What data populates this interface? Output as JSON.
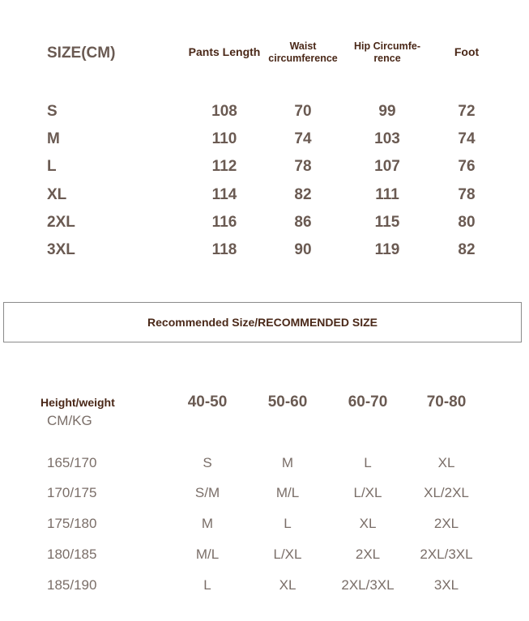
{
  "size_table": {
    "title": "SIZE(CM)",
    "headers": [
      "Pants Length",
      "Waist circumference",
      "Hip Circumfe-rence",
      "Foot"
    ],
    "header_lines": [
      [
        "Pants Length"
      ],
      [
        "Waist",
        "circumference"
      ],
      [
        "Hip Circumfe-",
        "rence"
      ],
      [
        "Foot"
      ]
    ],
    "rows": [
      {
        "size": "S",
        "values": [
          "108",
          "70",
          "99",
          "72"
        ]
      },
      {
        "size": "M",
        "values": [
          "110",
          "74",
          "103",
          "74"
        ]
      },
      {
        "size": "L",
        "values": [
          "112",
          "78",
          "107",
          "76"
        ]
      },
      {
        "size": "XL",
        "values": [
          "114",
          "82",
          "111",
          "78"
        ]
      },
      {
        "size": "2XL",
        "values": [
          "116",
          "86",
          "115",
          "80"
        ]
      },
      {
        "size": "3XL",
        "values": [
          "118",
          "90",
          "119",
          "82"
        ]
      }
    ]
  },
  "recommended_banner": "Recommended Size/RECOMMENDED SIZE",
  "recommend_table": {
    "title": "Height/weight",
    "unit": "CM/KG",
    "columns": [
      "40-50",
      "50-60",
      "60-70",
      "70-80"
    ],
    "rows": [
      {
        "height": "165/170",
        "values": [
          "S",
          "M",
          "L",
          "XL"
        ]
      },
      {
        "height": "170/175",
        "values": [
          "S/M",
          "M/L",
          "L/XL",
          "XL/2XL"
        ]
      },
      {
        "height": "175/180",
        "values": [
          "M",
          "L",
          "XL",
          "2XL"
        ]
      },
      {
        "height": "180/185",
        "values": [
          "M/L",
          "L/XL",
          "2XL",
          "2XL/3XL"
        ]
      },
      {
        "height": "185/190",
        "values": [
          "L",
          "XL",
          "2XL/3XL",
          "3XL"
        ]
      }
    ]
  },
  "colors": {
    "header": "#4a2818",
    "value": "#6a5a52",
    "light_value": "#7a6e68",
    "border": "#8a8a8a"
  }
}
